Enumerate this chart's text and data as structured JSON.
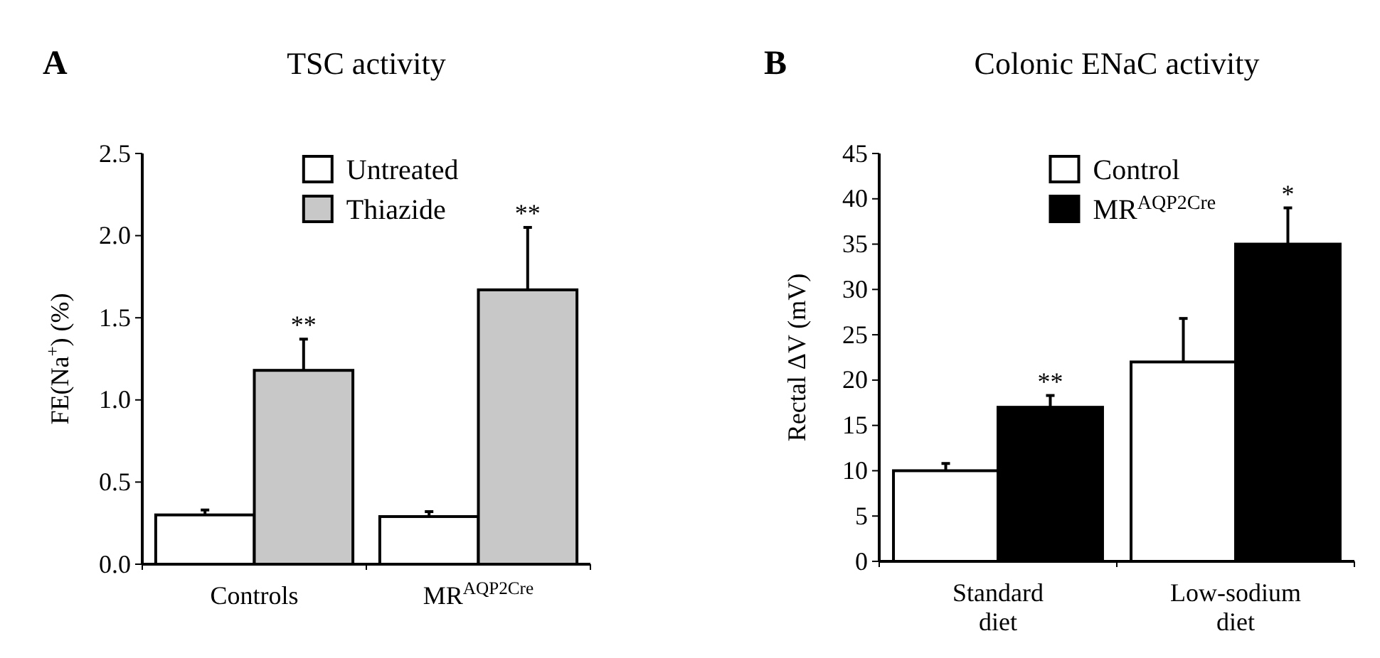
{
  "chart_data": [
    {
      "type": "bar",
      "title": "TSC activity",
      "ylabel": "FE(Na$^{+}$) (%)",
      "categories": [
        "Controls",
        "MR$^{AQP2Cre}$"
      ],
      "ylim": [
        0,
        2.5
      ],
      "yticks": [
        {
          "value": 0,
          "label": "0.0"
        },
        0.5,
        {
          "value": 1,
          "label": "1.0"
        },
        1.5,
        {
          "value": 2,
          "label": "2.0"
        },
        2.5
      ],
      "legend": "top",
      "grid": false,
      "series": [
        {
          "name": "Untreated",
          "color": "#ffffff",
          "values": [
            0.3,
            0.29
          ],
          "errors": [
            [
              0.3,
              0.33
            ],
            [
              0.29,
              0.32
            ]
          ]
        },
        {
          "name": "Thiazide",
          "color": "#c8c8c8",
          "values": [
            1.18,
            1.67
          ],
          "errors": [
            [
              1.18,
              1.37
            ],
            [
              1.67,
              2.05
            ]
          ]
        }
      ],
      "annotations": [
        "A",
        "**",
        "**"
      ]
    },
    {
      "type": "bar",
      "title": "Colonic ENaC activity",
      "ylabel": "Rectal ΔV (mV)",
      "categories": [
        "Standard diet",
        "Low-sodium diet"
      ],
      "ylim": [
        0,
        45
      ],
      "yticks": [
        0,
        5,
        10,
        15,
        20,
        25,
        30,
        35,
        40,
        45
      ],
      "legend": "top",
      "grid": false,
      "series": [
        {
          "name": "Control",
          "color": "#ffffff",
          "values": [
            10,
            22
          ],
          "errors": [
            [
              10,
              10.8
            ],
            [
              22,
              26.8
            ]
          ]
        },
        {
          "name": "MR$^{AQP2Cre}$",
          "color": "#000000",
          "values": [
            17,
            35
          ],
          "errors": [
            [
              17,
              18.3
            ],
            [
              35,
              39
            ]
          ]
        }
      ],
      "annotations": [
        "B",
        "**",
        "*"
      ]
    }
  ]
}
